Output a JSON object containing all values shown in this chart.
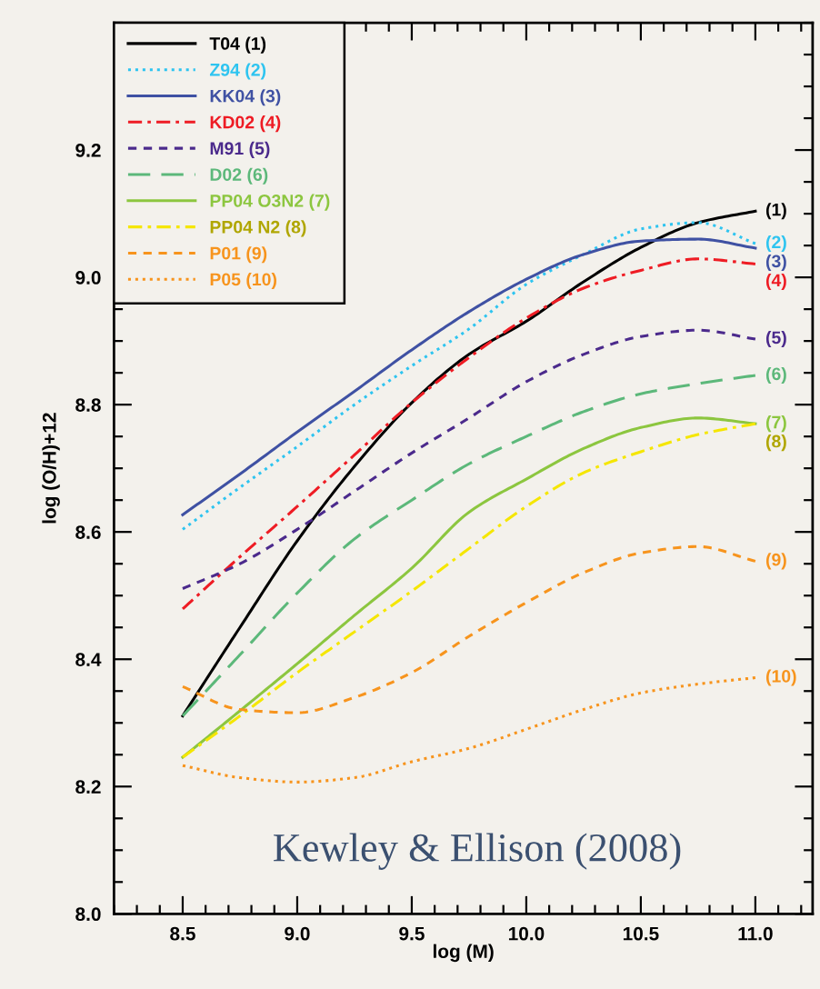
{
  "chart_data": {
    "type": "line",
    "xlabel": "log (M)",
    "ylabel": "log (O/H)+12",
    "x": [
      8.5,
      8.75,
      9.0,
      9.25,
      9.5,
      9.75,
      10.0,
      10.25,
      10.5,
      10.75,
      11.0
    ],
    "xlim": [
      8.2,
      11.25
    ],
    "xticks": [
      {
        "value": 8.5,
        "label": "8.5"
      },
      {
        "value": 9.0,
        "label": "9.0"
      },
      {
        "value": 9.5,
        "label": "9.5"
      },
      {
        "value": 10.0,
        "label": "10.0"
      },
      {
        "value": 10.5,
        "label": "10.5"
      },
      {
        "value": 11.0,
        "label": "11.0"
      }
    ],
    "ylim": [
      8.0,
      9.4
    ],
    "yticks": [
      {
        "value": 8.0,
        "label": "8.0"
      },
      {
        "value": 8.2,
        "label": "8.2"
      },
      {
        "value": 8.4,
        "label": "8.4"
      },
      {
        "value": 8.6,
        "label": "8.6"
      },
      {
        "value": 8.8,
        "label": "8.8"
      },
      {
        "value": 9.0,
        "label": "9.0"
      },
      {
        "value": 9.2,
        "label": "9.2"
      }
    ],
    "grid": false,
    "legend": "top left",
    "marker": "none",
    "series": [
      {
        "name": "T04 (1)",
        "color": "#000000",
        "line_style": "solid",
        "values": [
          8.311,
          8.45,
          8.586,
          8.703,
          8.803,
          8.879,
          8.931,
          8.993,
          9.047,
          9.086,
          9.104
        ]
      },
      {
        "name": "Z94 (2)",
        "color": "#2ec4f0",
        "line_style": "dotted",
        "values": [
          8.604,
          8.67,
          8.734,
          8.8,
          8.861,
          8.919,
          8.989,
          9.036,
          9.076,
          9.086,
          9.053
        ]
      },
      {
        "name": "KK04 (3)",
        "color": "#3f51a3",
        "line_style": "solid",
        "values": [
          8.627,
          8.691,
          8.757,
          8.821,
          8.886,
          8.946,
          8.997,
          9.036,
          9.057,
          9.06,
          9.046
        ]
      },
      {
        "name": "KD02 (4)",
        "color": "#ee1c24",
        "line_style": "dashdot",
        "values": [
          8.479,
          8.561,
          8.64,
          8.721,
          8.803,
          8.874,
          8.936,
          8.983,
          9.011,
          9.029,
          9.021
        ]
      },
      {
        "name": "M91 (5)",
        "color": "#4b2a8c",
        "line_style": "dashed",
        "values": [
          8.511,
          8.55,
          8.604,
          8.664,
          8.724,
          8.779,
          8.836,
          8.879,
          8.907,
          8.917,
          8.903
        ]
      },
      {
        "name": "D02 (6)",
        "color": "#5cb87a",
        "line_style": "longdashed",
        "values": [
          8.311,
          8.407,
          8.504,
          8.589,
          8.65,
          8.707,
          8.75,
          8.789,
          8.817,
          8.833,
          8.846
        ]
      },
      {
        "name": "PP04 O3N2 (7)",
        "color": "#8cc63f",
        "line_style": "solid",
        "values": [
          8.246,
          8.319,
          8.393,
          8.469,
          8.543,
          8.631,
          8.683,
          8.731,
          8.764,
          8.779,
          8.77
        ]
      },
      {
        "name": "PP04 N2 (8)",
        "color": "#f5e600",
        "line_style": "dashdot",
        "values": [
          8.246,
          8.311,
          8.379,
          8.443,
          8.507,
          8.574,
          8.64,
          8.693,
          8.726,
          8.753,
          8.77
        ]
      },
      {
        "name": "P01 (9)",
        "color": "#f7941d",
        "line_style": "dashed",
        "values": [
          8.357,
          8.321,
          8.316,
          8.34,
          8.379,
          8.436,
          8.489,
          8.536,
          8.567,
          8.577,
          8.554
        ]
      },
      {
        "name": "P05 (10)",
        "color": "#f7941d",
        "line_style": "dotted",
        "values": [
          8.233,
          8.214,
          8.207,
          8.214,
          8.239,
          8.26,
          8.29,
          8.321,
          8.347,
          8.361,
          8.371
        ]
      }
    ],
    "annotations": [
      "(1)",
      "(2)",
      "(3)",
      "(4)",
      "(5)",
      "(6)",
      "(7)",
      "(8)",
      "(9)",
      "(10)",
      "Kewley & Ellison (2008)"
    ]
  }
}
